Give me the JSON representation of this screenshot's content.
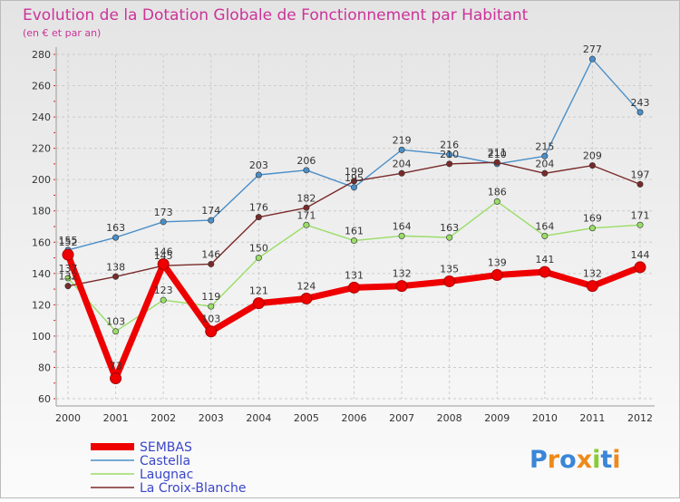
{
  "chart_data": {
    "type": "line",
    "title": "Evolution de la Dotation Globale de Fonctionnement par Habitant",
    "subtitle": "(en € et par an)",
    "xlabel": "",
    "ylabel": "",
    "ylim": [
      60,
      280
    ],
    "yticks": [
      60,
      80,
      100,
      120,
      140,
      160,
      180,
      200,
      220,
      240,
      260,
      280
    ],
    "categories": [
      "2000",
      "2001",
      "2002",
      "2003",
      "2004",
      "2005",
      "2006",
      "2007",
      "2008",
      "2009",
      "2010",
      "2011",
      "2012"
    ],
    "grid": true,
    "legend_position": "bottom-left",
    "series": [
      {
        "name": "Castella",
        "color": "#4a8fc8",
        "values": [
          155,
          163,
          173,
          174,
          203,
          206,
          195,
          219,
          216,
          210,
          215,
          277,
          243
        ]
      },
      {
        "name": "Laugnac",
        "color": "#99dd66",
        "values": [
          137,
          103,
          123,
          119,
          150,
          171,
          161,
          164,
          163,
          186,
          164,
          169,
          171
        ]
      },
      {
        "name": "La Croix-Blanche",
        "color": "#7a2a2a",
        "values": [
          132,
          138,
          145,
          146,
          176,
          182,
          199,
          204,
          210,
          211,
          204,
          209,
          197
        ]
      },
      {
        "name": "SEMBAS",
        "color": "#ee0000",
        "values": [
          152,
          73,
          146,
          103,
          121,
          124,
          131,
          132,
          135,
          139,
          141,
          132,
          144
        ]
      }
    ],
    "legend_order": [
      "SEMBAS",
      "Castella",
      "Laugnac",
      "La Croix-Blanche"
    ]
  },
  "logo": {
    "text": "Proxiti",
    "colors": [
      "#3a86d8",
      "#ee8a1a",
      "#3a86d8",
      "#ee8a1a",
      "#88cc33",
      "#3a86d8",
      "#ee8a1a"
    ]
  }
}
